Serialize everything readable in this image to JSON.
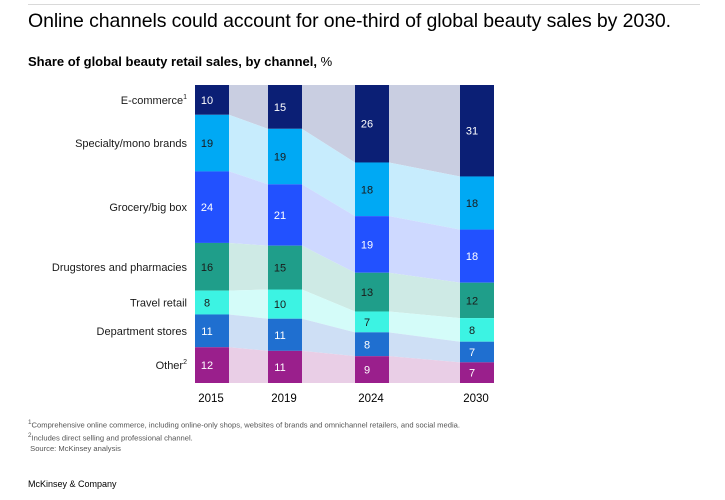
{
  "title": "Online channels could account for one-third of global beauty sales by 2030.",
  "subtitle": "Share of global beauty retail sales, by channel,",
  "subtitle_unit": "%",
  "chart_data": {
    "type": "bar",
    "stacked": true,
    "normalized_percent": true,
    "categories": [
      "2015",
      "2019",
      "2024",
      "2030"
    ],
    "series": [
      {
        "name": "E-commerce",
        "footnote": "1",
        "color": "#0b1f75",
        "label_color": "#ffffff",
        "values": [
          10,
          15,
          26,
          31
        ]
      },
      {
        "name": "Specialty/mono brands",
        "color": "#00a9f4",
        "label_color": "#1a1a1a",
        "values": [
          19,
          19,
          18,
          18
        ]
      },
      {
        "name": "Grocery/big box",
        "color": "#2251ff",
        "label_color": "#ffffff",
        "values": [
          24,
          21,
          19,
          18
        ]
      },
      {
        "name": "Drugstores and pharmacies",
        "color": "#1f9e8a",
        "label_color": "#1a1a1a",
        "values": [
          16,
          15,
          13,
          12
        ]
      },
      {
        "name": "Travel retail",
        "color": "#3cf3e3",
        "label_color": "#1a1a1a",
        "values": [
          8,
          10,
          7,
          8
        ]
      },
      {
        "name": "Department stores",
        "color": "#1f6fd0",
        "label_color": "#ffffff",
        "values": [
          11,
          11,
          8,
          7
        ]
      },
      {
        "name": "Other",
        "footnote": "2",
        "color": "#9a1f8c",
        "label_color": "#ffffff",
        "values": [
          12,
          11,
          9,
          7
        ]
      }
    ],
    "band_color_strength": 0.22,
    "ylim": [
      0,
      100
    ]
  },
  "footnotes": [
    {
      "mark": "1",
      "text": "Comprehensive online commerce, including online-only shops, websites of brands and omnichannel retailers, and social media."
    },
    {
      "mark": "2",
      "text": "Includes direct selling and professional channel."
    },
    {
      "mark": "",
      "text": "Source: McKinsey analysis"
    }
  ],
  "brand": "McKinsey & Company"
}
